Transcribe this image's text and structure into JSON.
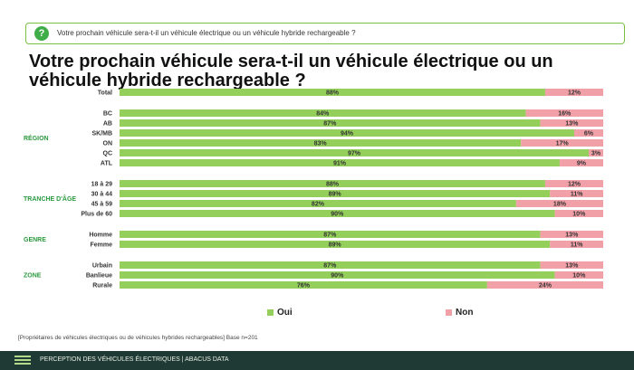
{
  "question": {
    "icon": "question-icon",
    "text": "Votre prochain véhicule sera-t-il un véhicule électrique ou un véhicule hybride rechargeable ?"
  },
  "title": "Votre prochain véhicule sera-t-il un véhicule électrique ou un véhicule hybride rechargeable ?",
  "colors": {
    "oui": "#93cf5a",
    "non": "#f2a0a8",
    "section": "#2b9a3f",
    "accent": "#3fae49",
    "footer_bg": "#1f3a34"
  },
  "chart_data": {
    "type": "bar",
    "orientation": "horizontal",
    "stacked": true,
    "sections": [
      {
        "label": "",
        "rows": [
          {
            "label": "Total",
            "oui": 88,
            "non": 12
          }
        ]
      },
      {
        "label": "RÉGION",
        "rows": [
          {
            "label": "BC",
            "oui": 84,
            "non": 16
          },
          {
            "label": "AB",
            "oui": 87,
            "non": 13
          },
          {
            "label": "SK/MB",
            "oui": 94,
            "non": 6
          },
          {
            "label": "ON",
            "oui": 83,
            "non": 17
          },
          {
            "label": "QC",
            "oui": 97,
            "non": 3
          },
          {
            "label": "ATL",
            "oui": 91,
            "non": 9
          }
        ]
      },
      {
        "label": "TRANCHE D'ÂGE",
        "rows": [
          {
            "label": "18 à 29",
            "oui": 88,
            "non": 12
          },
          {
            "label": "30 à 44",
            "oui": 89,
            "non": 11
          },
          {
            "label": "45 à 59",
            "oui": 82,
            "non": 18
          },
          {
            "label": "Plus de 60",
            "oui": 90,
            "non": 10
          }
        ]
      },
      {
        "label": "GENRE",
        "rows": [
          {
            "label": "Homme",
            "oui": 87,
            "non": 13
          },
          {
            "label": "Femme",
            "oui": 89,
            "non": 11
          }
        ]
      },
      {
        "label": "ZONE",
        "rows": [
          {
            "label": "Urbain",
            "oui": 87,
            "non": 13
          },
          {
            "label": "Banlieue",
            "oui": 90,
            "non": 10
          },
          {
            "label": "Rurale",
            "oui": 76,
            "non": 24
          }
        ]
      }
    ],
    "legend": [
      {
        "name": "Oui"
      },
      {
        "name": "Non"
      }
    ],
    "xlim": [
      0,
      100
    ]
  },
  "legend": {
    "oui": "Oui",
    "non": "Non"
  },
  "footnote": "[Propriétaires de véhicules électriques ou de véhicules hybrides rechargeables] Base n=201",
  "footer": {
    "text": "PERCEPTION DES VÉHICULES ÉLECTRIQUES  |  ABACUS DATA"
  }
}
